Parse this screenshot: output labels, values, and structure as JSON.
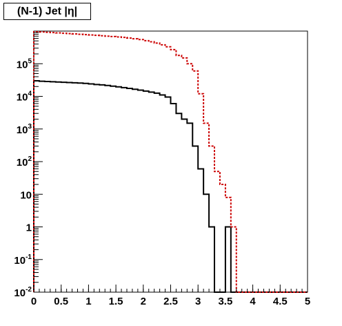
{
  "chart_data": {
    "type": "step",
    "title": "(N-1) Jet |η|",
    "xlabel": "",
    "ylabel": "",
    "xlim": [
      0,
      5
    ],
    "ylim": [
      0.01,
      1000000
    ],
    "yscale": "log",
    "grid": false,
    "bin_width": 0.1,
    "x_ticks": [
      {
        "value": 0,
        "label": "0"
      },
      {
        "value": 0.5,
        "label": "0.5"
      },
      {
        "value": 1,
        "label": "1"
      },
      {
        "value": 1.5,
        "label": "1.5"
      },
      {
        "value": 2,
        "label": "2"
      },
      {
        "value": 2.5,
        "label": "2.5"
      },
      {
        "value": 3,
        "label": "3"
      },
      {
        "value": 3.5,
        "label": "3.5"
      },
      {
        "value": 4,
        "label": "4"
      },
      {
        "value": 4.5,
        "label": "4.5"
      },
      {
        "value": 5,
        "label": "5"
      }
    ],
    "y_ticks": [
      {
        "value": 0.01,
        "base": "10",
        "exp": "-2"
      },
      {
        "value": 0.1,
        "base": "10",
        "exp": "-1"
      },
      {
        "value": 1,
        "base": "1",
        "exp": ""
      },
      {
        "value": 10,
        "base": "10",
        "exp": ""
      },
      {
        "value": 100,
        "base": "10",
        "exp": "2"
      },
      {
        "value": 1000,
        "base": "10",
        "exp": "3"
      },
      {
        "value": 10000,
        "base": "10",
        "exp": "4"
      },
      {
        "value": 100000,
        "base": "10",
        "exp": "5"
      }
    ],
    "series": [
      {
        "color": "#000000",
        "style": "solid",
        "values": [
          30000,
          29000,
          28500,
          28000,
          27500,
          27000,
          26500,
          26000,
          25500,
          25000,
          24000,
          23000,
          22500,
          21500,
          20500,
          19500,
          18500,
          17500,
          16500,
          15500,
          14500,
          13500,
          12500,
          11000,
          9500,
          6000,
          3000,
          2000,
          1500,
          300,
          60,
          10,
          1,
          0,
          0,
          1,
          0,
          0,
          0,
          0,
          0,
          0,
          0,
          0,
          0,
          0,
          0,
          0,
          0,
          0
        ]
      },
      {
        "color": "#cc0000",
        "style": "dashed",
        "values": [
          950000,
          940000,
          920000,
          900000,
          880000,
          860000,
          840000,
          820000,
          800000,
          780000,
          760000,
          740000,
          720000,
          700000,
          680000,
          660000,
          640000,
          610000,
          580000,
          550000,
          510000,
          470000,
          430000,
          380000,
          330000,
          270000,
          180000,
          150000,
          100000,
          60000,
          12000,
          1500,
          300,
          50,
          20,
          8,
          1,
          0,
          0,
          0,
          0,
          0,
          0,
          0,
          0,
          0,
          0,
          0,
          0,
          0
        ]
      }
    ]
  }
}
